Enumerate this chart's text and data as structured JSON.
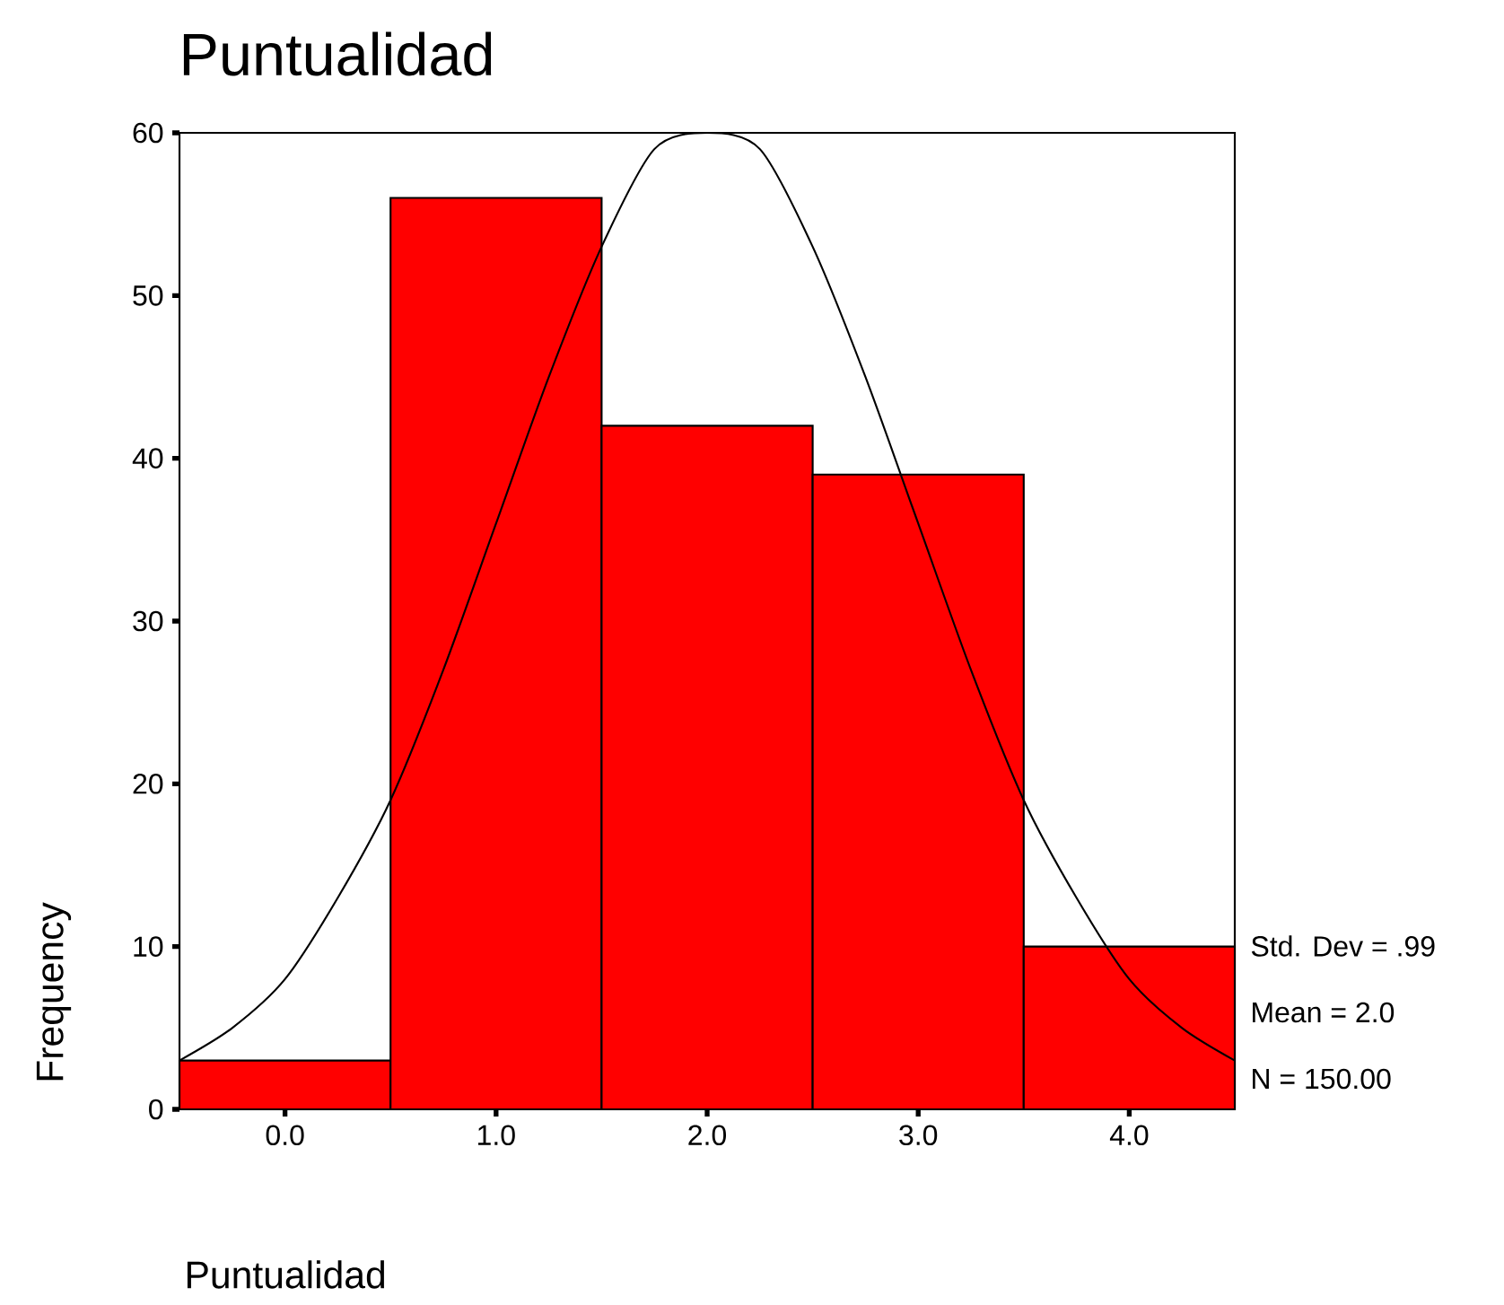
{
  "chart_data": {
    "type": "histogram",
    "title": "Puntualidad",
    "xlabel": "Puntualidad",
    "ylabel": "Frequency",
    "bins": [
      -0.5,
      0.5,
      1.5,
      2.5,
      3.5,
      4.5
    ],
    "values": [
      3,
      56,
      42,
      39,
      10
    ],
    "color": "#ff0000",
    "series": [
      {
        "type": "line",
        "color": "#000000",
        "x": [
          -0.5,
          -0.25,
          0,
          0.25,
          0.5,
          0.75,
          1,
          1.25,
          1.5,
          1.75,
          2,
          2.25,
          2.5,
          2.75,
          3,
          3.25,
          3.5,
          3.75,
          4,
          4.25,
          4.5
        ],
        "values": [
          3,
          5,
          8,
          13,
          19,
          27,
          36,
          45,
          53,
          59,
          60,
          59,
          53,
          45,
          36,
          27,
          19,
          13,
          8,
          5,
          3
        ]
      }
    ],
    "xlim": [
      -0.5,
      4.5
    ],
    "ylim": [
      0,
      60
    ],
    "xticks": [
      {
        "value": 0,
        "label": "0.0"
      },
      {
        "value": 1,
        "label": "1.0"
      },
      {
        "value": 2,
        "label": "2.0"
      },
      {
        "value": 3,
        "label": "3.0"
      },
      {
        "value": 4,
        "label": "4.0"
      }
    ],
    "yticks": [
      0,
      10,
      20,
      30,
      40,
      50,
      60
    ],
    "annotations": [
      "Std. Dev = .99",
      "Mean = 2.0",
      "N = 150.00"
    ]
  }
}
